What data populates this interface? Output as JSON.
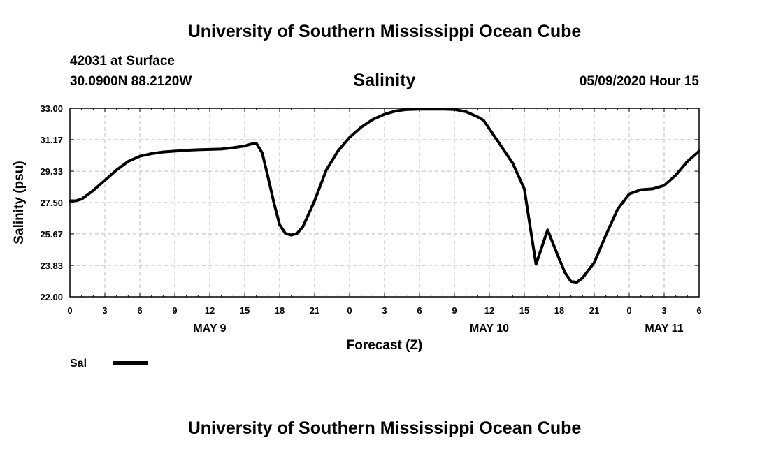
{
  "header": {
    "title": "University of Southern Mississippi Ocean Cube",
    "station": "42031 at Surface",
    "location": "30.0900N 88.2120W",
    "datetime": "05/09/2020 Hour 15"
  },
  "footer": {
    "title": "University of Southern Mississippi Ocean Cube"
  },
  "chart_data": {
    "type": "line",
    "title": "Salinity",
    "xlabel": "Forecast (Z)",
    "ylabel": "Salinity (psu)",
    "x_unit": "hours since MAY 9 00Z",
    "xlim": [
      0,
      54
    ],
    "ylim": [
      22.0,
      33.0
    ],
    "y_ticks": [
      "22.00",
      "23.83",
      "25.67",
      "27.50",
      "29.33",
      "31.17",
      "33.00"
    ],
    "y_tick_values": [
      22.0,
      23.83,
      25.67,
      27.5,
      29.33,
      31.17,
      33.0
    ],
    "x_ticks": [
      0,
      3,
      6,
      9,
      12,
      15,
      18,
      21,
      24,
      27,
      30,
      33,
      36,
      39,
      42,
      45,
      48,
      51,
      54
    ],
    "x_tick_labels": [
      "0",
      "3",
      "6",
      "9",
      "12",
      "15",
      "18",
      "21",
      "0",
      "3",
      "6",
      "9",
      "12",
      "15",
      "18",
      "21",
      "0",
      "3",
      "6"
    ],
    "date_labels": [
      {
        "label": "MAY 9",
        "x": 12
      },
      {
        "label": "MAY 10",
        "x": 36
      },
      {
        "label": "MAY 11",
        "x": 51
      }
    ],
    "grid": true,
    "legend": [
      {
        "name": "Sal",
        "position": "bottom-left"
      }
    ],
    "series": [
      {
        "name": "Sal",
        "x": [
          0,
          0.5,
          1,
          2,
          3,
          4,
          5,
          6,
          7,
          8,
          9,
          10,
          11,
          12,
          13,
          14,
          15,
          15.5,
          16,
          16.5,
          17,
          17.5,
          18,
          18.5,
          19,
          19.5,
          20,
          21,
          22,
          23,
          24,
          25,
          26,
          27,
          28,
          29,
          30,
          31,
          32,
          33,
          34,
          35,
          35.5,
          36,
          37,
          38,
          39,
          39.5,
          40,
          40.5,
          41,
          42,
          42.5,
          43,
          43.5,
          44,
          45,
          46,
          47,
          48,
          49,
          50,
          51,
          52,
          53,
          54
        ],
        "values": [
          27.6,
          27.6,
          27.7,
          28.2,
          28.8,
          29.4,
          29.9,
          30.2,
          30.35,
          30.45,
          30.5,
          30.55,
          30.58,
          30.6,
          30.62,
          30.7,
          30.8,
          30.9,
          30.95,
          30.4,
          29.0,
          27.5,
          26.2,
          25.7,
          25.6,
          25.7,
          26.1,
          27.6,
          29.4,
          30.5,
          31.3,
          31.9,
          32.35,
          32.65,
          32.85,
          32.93,
          32.95,
          32.95,
          32.95,
          32.93,
          32.8,
          32.5,
          32.3,
          31.8,
          30.8,
          29.8,
          28.3,
          26.1,
          23.9,
          24.9,
          25.9,
          24.2,
          23.4,
          22.9,
          22.85,
          23.1,
          24.0,
          25.6,
          27.1,
          28.0,
          28.25,
          28.3,
          28.5,
          29.1,
          29.9,
          30.5
        ]
      }
    ]
  }
}
